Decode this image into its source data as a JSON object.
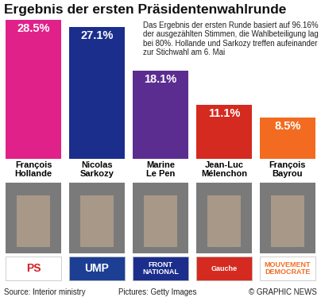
{
  "chart_data": {
    "type": "bar",
    "title": "Ergebnis der ersten Präsidentenwahlrunde",
    "categories": [
      "François Hollande",
      "Nicolas Sarkozy",
      "Marine Le Pen",
      "Jean-Luc Mélenchon",
      "François Bayrou"
    ],
    "values": [
      28.5,
      27.1,
      18.1,
      11.1,
      8.5
    ],
    "value_labels": [
      "28.5%",
      "27.1%",
      "18.1%",
      "11.1%",
      "8.5%"
    ],
    "colors": [
      "#e0218a",
      "#1c2e8c",
      "#5b2d91",
      "#d42a20",
      "#f26b21"
    ],
    "ylim": [
      0,
      28.5
    ],
    "data_labels": true,
    "tick_labels": "x",
    "annotation": "Das Ergebnis der ersten Runde basiert auf 96.16% der ausgezählten Stimmen, die Wahlbeteiligung lag bei 80%. Hollande und Sarkozy treffen aufeinander zur Stichwahl am 6. Mai",
    "parties": [
      "PS",
      "UMP",
      "FRONT NATIONAL",
      "Gauche",
      "MOUVEMENT DEMOCRATE"
    ],
    "source": "Source: Interior ministry",
    "credit": "Pictures: Getty Images",
    "copyright": "© GRAPHIC NEWS"
  }
}
